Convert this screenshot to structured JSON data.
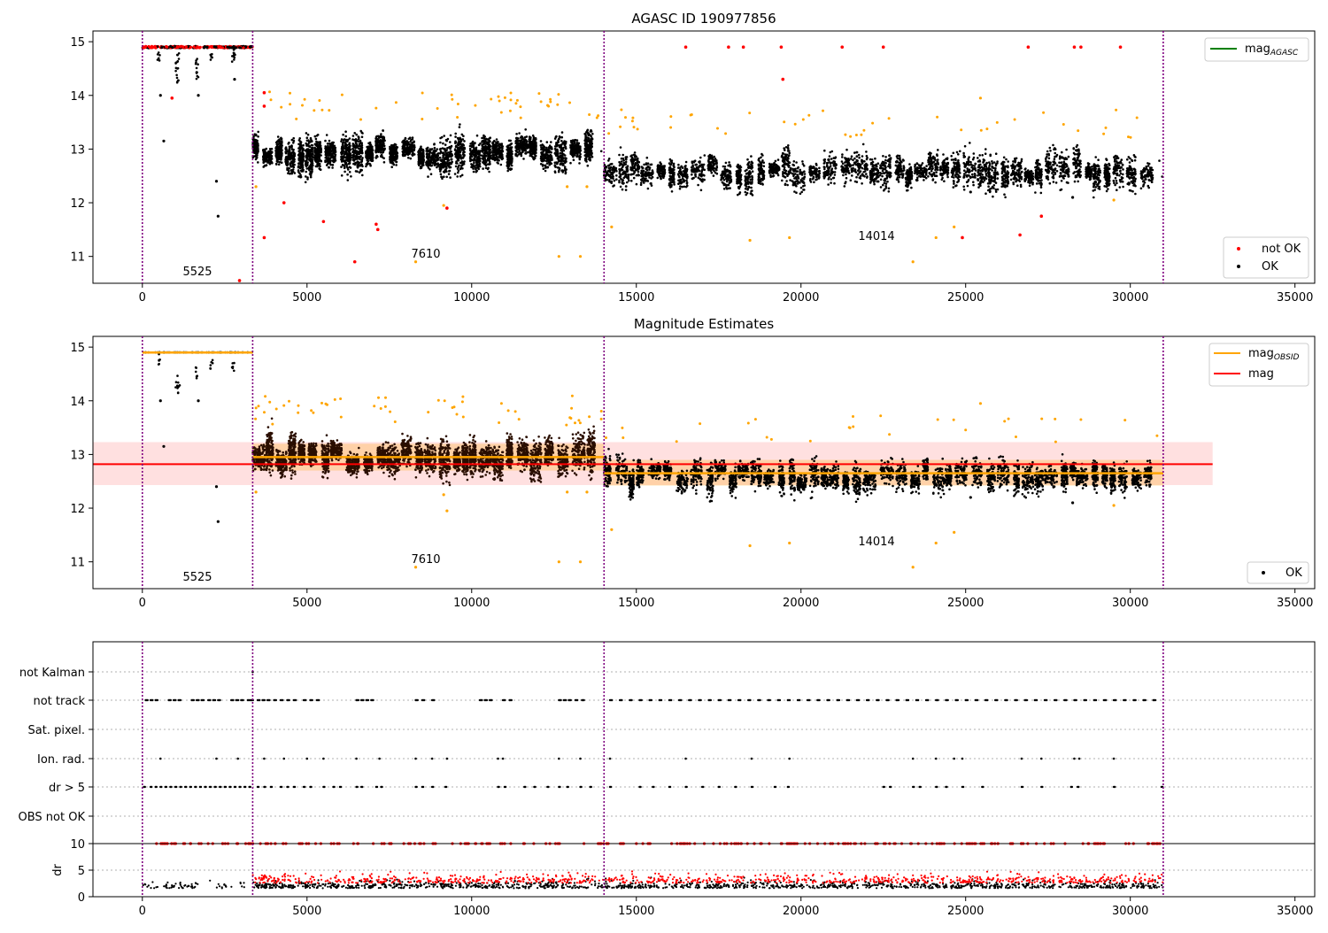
{
  "chart_data": [
    {
      "type": "scatter",
      "title": "AGASC ID 190977856",
      "xlim": [
        -1500,
        35600
      ],
      "ylim": [
        10.5,
        15.2
      ],
      "xticks": [
        0,
        5000,
        10000,
        15000,
        20000,
        25000,
        30000,
        35000
      ],
      "yticks": [
        11,
        12,
        13,
        14,
        15
      ],
      "vlines": [
        0,
        3350,
        14020,
        31000
      ],
      "segments": [
        {
          "x": [
            0,
            3350
          ],
          "level": 14.9,
          "saturated": true
        },
        {
          "x": [
            3350,
            14020
          ],
          "level": 12.95,
          "spread": 0.22
        },
        {
          "x": [
            14020,
            31000
          ],
          "level": 12.6,
          "spread": 0.2
        }
      ],
      "annotations": [
        {
          "text": "5525",
          "x": 1650,
          "y": 10.7
        },
        {
          "text": "7610",
          "x": 8650,
          "y": 11.05
        },
        {
          "text": "14014",
          "x": 22500,
          "y": 11.38
        }
      ],
      "legend_upper": {
        "position": "top-right",
        "entries": [
          {
            "label": "mag",
            "sub": "AGASC",
            "color": "#008000"
          }
        ]
      },
      "legend_lower": {
        "position": "bottom-right",
        "entries": [
          {
            "label": "not OK",
            "color": "#ff0000"
          },
          {
            "label": "OK",
            "color": "#000000"
          }
        ]
      },
      "outliers_red": [
        [
          900,
          13.95
        ],
        [
          2950,
          10.55
        ],
        [
          3700,
          14.05
        ],
        [
          3700,
          13.8
        ],
        [
          3700,
          11.35
        ],
        [
          4300,
          12.0
        ],
        [
          5500,
          11.65
        ],
        [
          6450,
          10.9
        ],
        [
          7100,
          11.6
        ],
        [
          7150,
          11.5
        ],
        [
          9250,
          11.9
        ],
        [
          16500,
          14.9
        ],
        [
          17800,
          14.9
        ],
        [
          18250,
          14.9
        ],
        [
          19400,
          14.9
        ],
        [
          19450,
          14.3
        ],
        [
          21250,
          14.9
        ],
        [
          22500,
          14.9
        ],
        [
          24900,
          11.35
        ],
        [
          26650,
          11.4
        ],
        [
          26900,
          14.9
        ],
        [
          27300,
          11.75
        ],
        [
          28300,
          14.9
        ],
        [
          28500,
          14.9
        ],
        [
          29700,
          14.9
        ]
      ],
      "outliers_orange": [
        [
          3450,
          12.3
        ],
        [
          8300,
          10.9
        ],
        [
          9150,
          11.95
        ],
        [
          12650,
          11.0
        ],
        [
          13300,
          11.0
        ],
        [
          14250,
          11.55
        ],
        [
          18450,
          11.3
        ],
        [
          19650,
          11.35
        ],
        [
          23400,
          10.9
        ],
        [
          24100,
          11.35
        ],
        [
          24650,
          11.55
        ],
        [
          25450,
          13.95
        ],
        [
          29500,
          12.05
        ],
        [
          12900,
          12.3
        ],
        [
          13500,
          12.3
        ]
      ],
      "outliers_black": [
        [
          550,
          14.0
        ],
        [
          650,
          13.15
        ],
        [
          1700,
          14.0
        ],
        [
          2250,
          12.4
        ],
        [
          2300,
          11.75
        ],
        [
          2800,
          14.3
        ],
        [
          28250,
          12.1
        ],
        [
          25150,
          12.2
        ]
      ]
    },
    {
      "type": "scatter",
      "title": "Magnitude Estimates",
      "xlim": [
        -1500,
        35600
      ],
      "ylim": [
        10.5,
        15.2
      ],
      "xticks": [
        0,
        5000,
        10000,
        15000,
        20000,
        25000,
        30000,
        35000
      ],
      "yticks": [
        11,
        12,
        13,
        14,
        15
      ],
      "vlines": [
        0,
        3350,
        14020,
        31000
      ],
      "mag": 12.82,
      "mag_band": [
        12.43,
        13.23
      ],
      "mag_x": [
        -1500,
        32500
      ],
      "mag_obsid": [
        {
          "x": [
            0,
            3350
          ],
          "value": 14.9
        },
        {
          "x": [
            3350,
            14020
          ],
          "value": 12.95
        },
        {
          "x": [
            14020,
            31000
          ],
          "value": 12.65
        }
      ],
      "annotations": [
        {
          "text": "5525",
          "x": 1650,
          "y": 10.7
        },
        {
          "text": "7610",
          "x": 8650,
          "y": 11.05
        },
        {
          "text": "14014",
          "x": 22500,
          "y": 11.38
        }
      ],
      "legend_upper": {
        "position": "top-right",
        "entries": [
          {
            "label": "mag",
            "sub": "OBSID",
            "color": "#ffa500"
          },
          {
            "label": "mag",
            "color": "#ff0000"
          }
        ]
      },
      "legend_lower": {
        "position": "bottom-right",
        "entries": [
          {
            "label": "OK",
            "color": "#000000"
          }
        ]
      },
      "outliers_orange": [
        [
          3450,
          12.3
        ],
        [
          8300,
          10.9
        ],
        [
          9150,
          12.25
        ],
        [
          9250,
          11.95
        ],
        [
          12650,
          11.0
        ],
        [
          13300,
          11.0
        ],
        [
          12900,
          12.3
        ],
        [
          13500,
          12.3
        ],
        [
          14250,
          11.6
        ],
        [
          18450,
          11.3
        ],
        [
          19650,
          11.35
        ],
        [
          23400,
          10.9
        ],
        [
          24100,
          11.35
        ],
        [
          24650,
          11.55
        ],
        [
          25450,
          13.95
        ],
        [
          29500,
          12.05
        ]
      ],
      "outliers_black": [
        [
          550,
          14.0
        ],
        [
          650,
          13.15
        ],
        [
          1700,
          14.0
        ],
        [
          2250,
          12.4
        ],
        [
          2300,
          11.75
        ],
        [
          28250,
          12.1
        ],
        [
          25150,
          12.2
        ]
      ]
    },
    {
      "type": "scatter",
      "title": "",
      "xlim": [
        -1500,
        35600
      ],
      "vlines": [
        0,
        3350,
        14020,
        31000
      ],
      "flag_rows": [
        "not Kalman",
        "not track",
        "Sat. pixel.",
        "Ion. rad.",
        "dr > 5",
        "OBS not OK"
      ],
      "not_track_x": [
        100,
        250,
        400,
        800,
        950,
        1100,
        1500,
        1650,
        1800,
        2000,
        2150,
        2300,
        2700,
        2850,
        3000,
        3200,
        3300,
        3500,
        3650,
        3800,
        4000,
        4200,
        4400,
        4600,
        4900,
        5100,
        5300,
        6500,
        6650,
        6800,
        6950,
        8300,
        8500,
        8800,
        10250,
        10400,
        10550,
        10950,
        11150,
        12650,
        12800,
        12950,
        13150,
        13350,
        14200,
        14500,
        14800,
        15100,
        15400,
        15700,
        16000,
        16300,
        16600,
        16900,
        17200,
        17500,
        17800,
        18100,
        18400,
        18700,
        19000,
        19300,
        19600,
        19900,
        20200,
        20500,
        20800,
        21100,
        21400,
        21700,
        22000,
        22300,
        22600,
        22900,
        23200,
        23500,
        23800,
        24100,
        24400,
        24700,
        25000,
        25300,
        25600,
        25900,
        26200,
        26500,
        26800,
        27100,
        27400,
        27700,
        28000,
        28300,
        28600,
        28900,
        29200,
        29500,
        29800,
        30100,
        30400,
        30700
      ],
      "ion_rad_x": [
        550,
        2250,
        2900,
        3700,
        4300,
        5000,
        5500,
        6500,
        7200,
        8300,
        8800,
        9250,
        10800,
        10950,
        12650,
        13300,
        14200,
        16500,
        18500,
        19650,
        23400,
        24100,
        24650,
        24900,
        26700,
        27300,
        28300,
        28450,
        29500
      ],
      "dr5_x": [
        50,
        250,
        400,
        550,
        700,
        850,
        1000,
        1150,
        1300,
        1450,
        1600,
        1750,
        1900,
        2050,
        2200,
        2350,
        2500,
        2650,
        2800,
        2950,
        3100,
        3250,
        3500,
        3700,
        3900,
        4200,
        4400,
        4600,
        4900,
        5100,
        5500,
        5800,
        6000,
        6500,
        6650,
        7100,
        7250,
        8300,
        8500,
        8800,
        9200,
        10800,
        11000,
        11600,
        11900,
        12300,
        12650,
        12900,
        13300,
        13600,
        14200,
        15100,
        15500,
        16000,
        16500,
        17000,
        17500,
        18000,
        18500,
        19200,
        19600,
        22500,
        22700,
        23400,
        23600,
        24100,
        24400,
        24900,
        25500,
        26700,
        27300,
        28200,
        28400,
        29500,
        30950
      ],
      "not_kalman_x": [
        3350
      ]
    },
    {
      "type": "scatter",
      "title": "",
      "xlim": [
        -1500,
        35600
      ],
      "ylim": [
        0,
        10
      ],
      "xticks": [
        0,
        5000,
        10000,
        15000,
        20000,
        25000,
        30000,
        35000
      ],
      "yticks": [
        0,
        5,
        10
      ],
      "ylabel": "dr",
      "vlines": [
        0,
        3350,
        14020,
        31000
      ]
    }
  ]
}
